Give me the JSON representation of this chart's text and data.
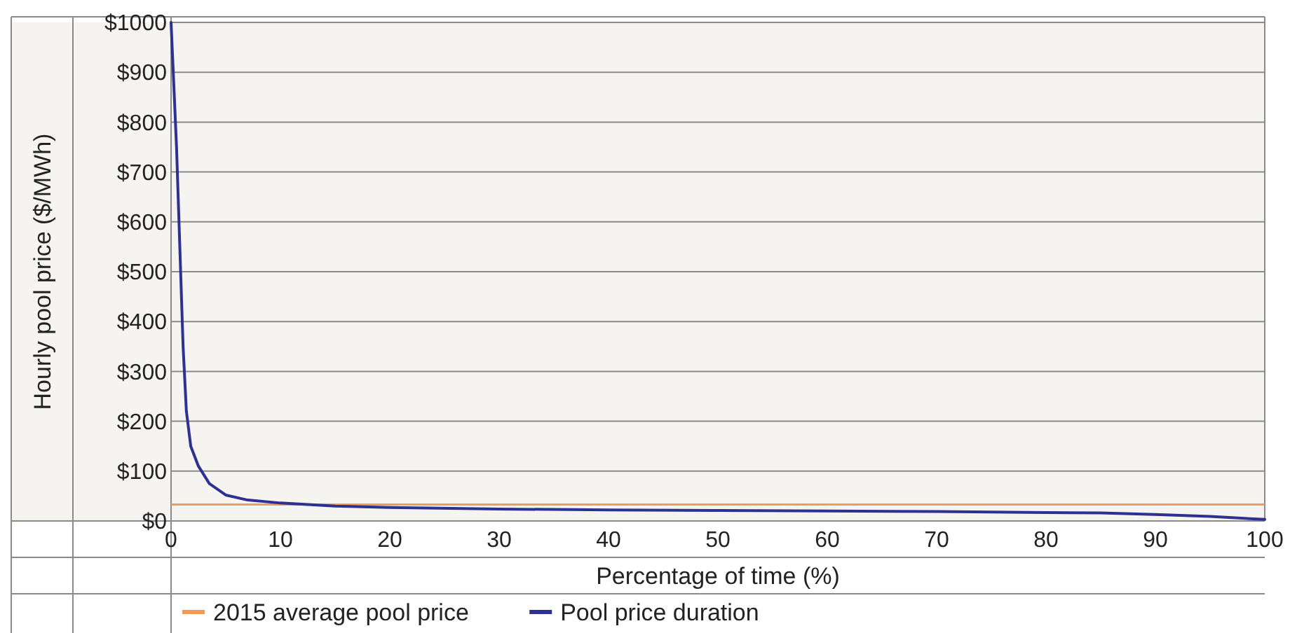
{
  "chart_data": {
    "type": "line",
    "xlabel": "Percentage of time (%)",
    "ylabel": "Hourly pool price ($/MWh)",
    "xlim": [
      0,
      100
    ],
    "xticks": [
      0,
      10,
      20,
      30,
      40,
      50,
      60,
      70,
      80,
      90,
      100
    ],
    "ylim": [
      0,
      1000
    ],
    "yticks": [
      {
        "value": 0,
        "label": "$0"
      },
      {
        "value": 100,
        "label": "$100"
      },
      {
        "value": 200,
        "label": "$200"
      },
      {
        "value": 300,
        "label": "$300"
      },
      {
        "value": 400,
        "label": "$400"
      },
      {
        "value": 500,
        "label": "$500"
      },
      {
        "value": 600,
        "label": "$600"
      },
      {
        "value": 700,
        "label": "$700"
      },
      {
        "value": 800,
        "label": "$800"
      },
      {
        "value": 900,
        "label": "$900"
      },
      {
        "value": 1000,
        "label": "$1000"
      }
    ],
    "grid": "y",
    "legend": "bottom",
    "line_style": "solid",
    "ref_lines": [
      {
        "axis": "y",
        "value": 33,
        "label": "2015 average pool price",
        "color": "#f39a5a"
      }
    ],
    "series": [
      {
        "name": "Pool price duration",
        "color": "#2e3192",
        "x": [
          0,
          0.2,
          0.5,
          0.8,
          1.1,
          1.4,
          1.8,
          2.5,
          3.5,
          5,
          7,
          10,
          15,
          20,
          30,
          40,
          50,
          60,
          70,
          80,
          85,
          90,
          95,
          100
        ],
        "values": [
          1000,
          900,
          750,
          550,
          350,
          220,
          150,
          110,
          75,
          52,
          42,
          36,
          30,
          27,
          24,
          22,
          21,
          20,
          19,
          17,
          16,
          13,
          9,
          3
        ]
      }
    ]
  }
}
